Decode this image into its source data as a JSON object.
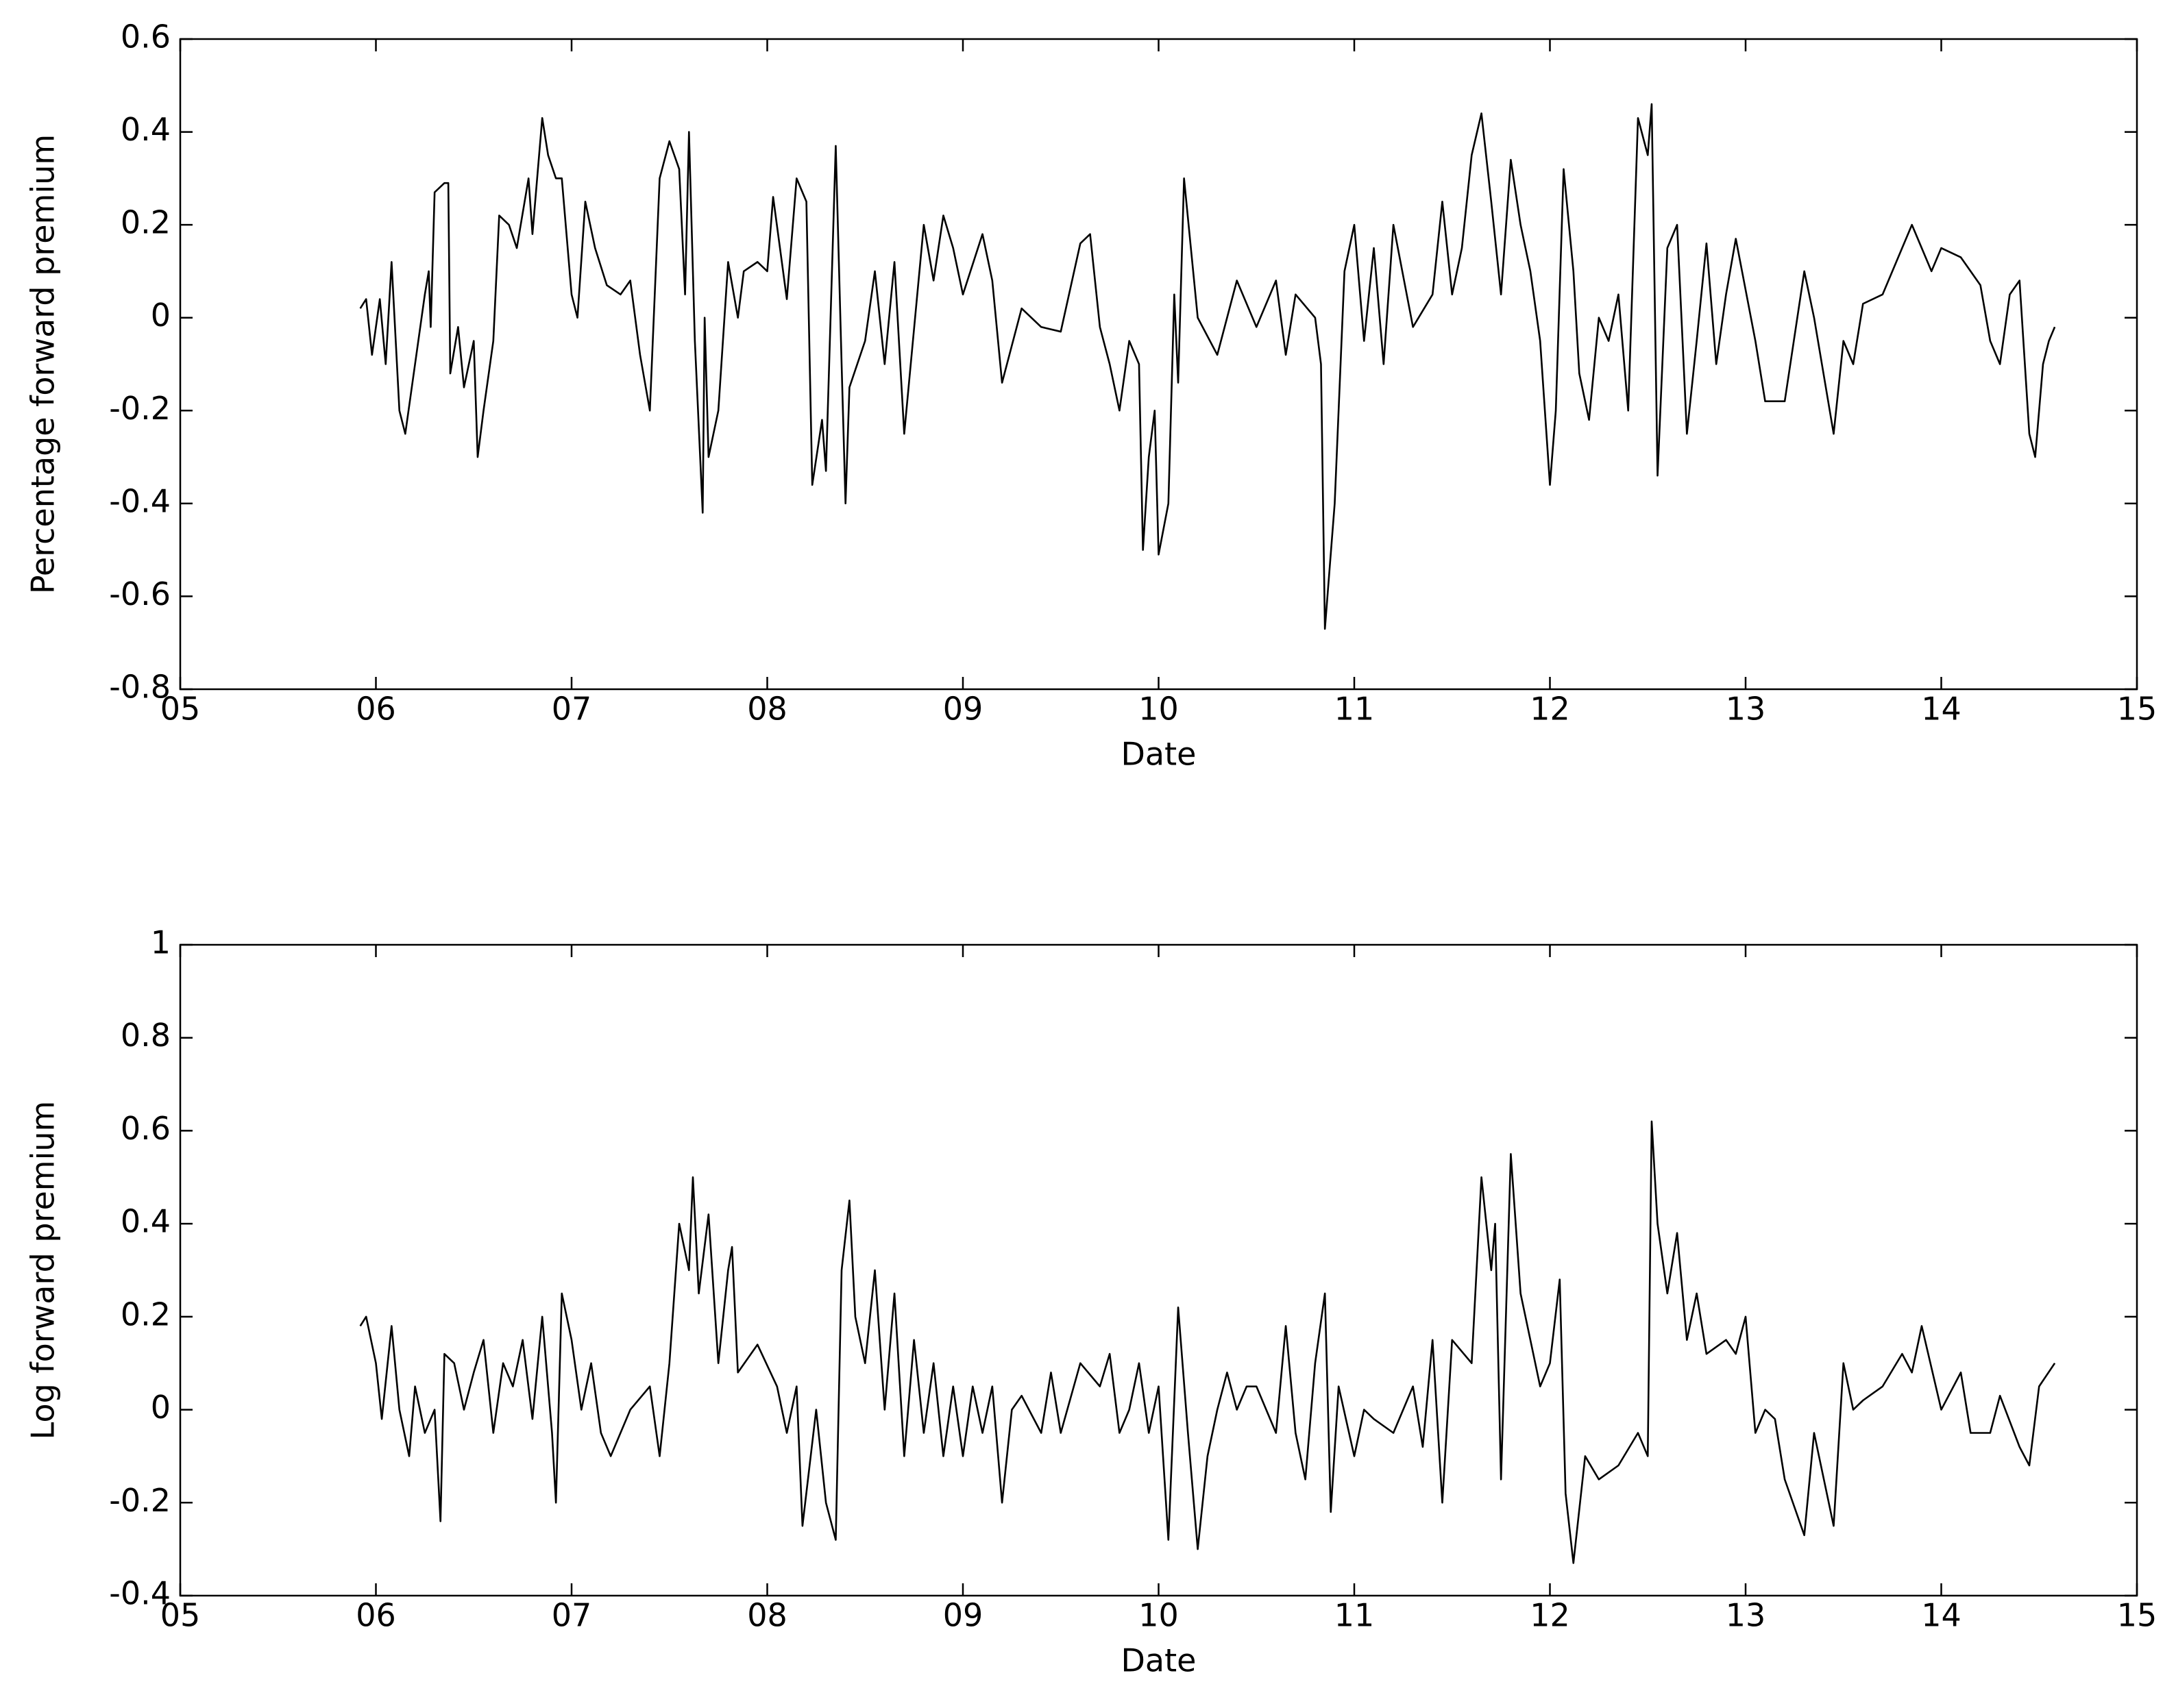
{
  "chart_data": [
    {
      "type": "line",
      "xlabel": "Date",
      "ylabel": "Percentage forward premium",
      "color": "#000000",
      "xlim": [
        5,
        15
      ],
      "ylim": [
        -0.8,
        0.6
      ],
      "xticks": [
        {
          "value": 5,
          "label": "05"
        },
        {
          "value": 6,
          "label": "06"
        },
        {
          "value": 7,
          "label": "07"
        },
        {
          "value": 8,
          "label": "08"
        },
        {
          "value": 9,
          "label": "09"
        },
        10,
        11,
        12,
        13,
        14,
        15
      ],
      "yticks": [
        -0.8,
        -0.6,
        -0.4,
        -0.2,
        0,
        0.2,
        0.4,
        0.6
      ],
      "x": [
        5.92,
        5.95,
        5.98,
        6.02,
        6.05,
        6.08,
        6.12,
        6.15,
        6.2,
        6.25,
        6.27,
        6.28,
        6.3,
        6.35,
        6.37,
        6.38,
        6.42,
        6.45,
        6.5,
        6.52,
        6.55,
        6.6,
        6.63,
        6.68,
        6.72,
        6.78,
        6.8,
        6.85,
        6.88,
        6.92,
        6.95,
        7.0,
        7.03,
        7.07,
        7.12,
        7.18,
        7.25,
        7.3,
        7.35,
        7.4,
        7.45,
        7.5,
        7.55,
        7.58,
        7.6,
        7.63,
        7.67,
        7.68,
        7.7,
        7.75,
        7.8,
        7.85,
        7.88,
        7.95,
        8.0,
        8.03,
        8.1,
        8.15,
        8.2,
        8.23,
        8.28,
        8.3,
        8.35,
        8.38,
        8.4,
        8.42,
        8.5,
        8.55,
        8.6,
        8.65,
        8.7,
        8.8,
        8.85,
        8.9,
        8.95,
        9.0,
        9.1,
        9.15,
        9.2,
        9.3,
        9.4,
        9.5,
        9.6,
        9.65,
        9.7,
        9.75,
        9.8,
        9.85,
        9.9,
        9.92,
        9.95,
        9.98,
        10.0,
        10.05,
        10.08,
        10.1,
        10.13,
        10.2,
        10.3,
        10.4,
        10.5,
        10.6,
        10.65,
        10.7,
        10.8,
        10.83,
        10.85,
        10.9,
        10.95,
        11.0,
        11.05,
        11.1,
        11.15,
        11.2,
        11.3,
        11.4,
        11.45,
        11.5,
        11.55,
        11.6,
        11.65,
        11.7,
        11.75,
        11.8,
        11.85,
        11.9,
        11.95,
        12.0,
        12.03,
        12.07,
        12.12,
        12.15,
        12.2,
        12.25,
        12.3,
        12.35,
        12.4,
        12.45,
        12.5,
        12.52,
        12.55,
        12.6,
        12.65,
        12.7,
        12.75,
        12.8,
        12.85,
        12.9,
        12.95,
        13.05,
        13.1,
        13.2,
        13.3,
        13.35,
        13.45,
        13.5,
        13.55,
        13.6,
        13.7,
        13.8,
        13.85,
        13.95,
        14.0,
        14.1,
        14.2,
        14.25,
        14.3,
        14.35,
        14.4,
        14.45,
        14.48,
        14.52,
        14.55,
        14.58
      ],
      "values": [
        0.02,
        0.04,
        -0.08,
        0.04,
        -0.1,
        0.12,
        -0.2,
        -0.25,
        -0.1,
        0.05,
        0.1,
        -0.02,
        0.27,
        0.29,
        0.29,
        -0.12,
        -0.02,
        -0.15,
        -0.05,
        -0.3,
        -0.2,
        -0.05,
        0.22,
        0.2,
        0.15,
        0.3,
        0.18,
        0.43,
        0.35,
        0.3,
        0.3,
        0.05,
        0.0,
        0.25,
        0.15,
        0.07,
        0.05,
        0.08,
        -0.08,
        -0.2,
        0.3,
        0.38,
        0.32,
        0.05,
        0.4,
        -0.05,
        -0.42,
        0.0,
        -0.3,
        -0.2,
        0.12,
        0.0,
        0.1,
        0.12,
        0.1,
        0.26,
        0.04,
        0.3,
        0.25,
        -0.36,
        -0.22,
        -0.33,
        0.37,
        -0.1,
        -0.4,
        -0.15,
        -0.05,
        0.1,
        -0.1,
        0.12,
        -0.25,
        0.2,
        0.08,
        0.22,
        0.15,
        0.05,
        0.18,
        0.08,
        -0.14,
        0.02,
        -0.02,
        -0.03,
        0.16,
        0.18,
        -0.02,
        -0.1,
        -0.2,
        -0.05,
        -0.1,
        -0.5,
        -0.3,
        -0.2,
        -0.51,
        -0.4,
        0.05,
        -0.14,
        0.3,
        0.0,
        -0.08,
        0.08,
        -0.02,
        0.08,
        -0.08,
        0.05,
        0.0,
        -0.1,
        -0.67,
        -0.4,
        0.1,
        0.2,
        -0.05,
        0.15,
        -0.1,
        0.2,
        -0.02,
        0.05,
        0.25,
        0.05,
        0.15,
        0.35,
        0.44,
        0.25,
        0.05,
        0.34,
        0.2,
        0.1,
        -0.05,
        -0.36,
        -0.2,
        0.32,
        0.1,
        -0.12,
        -0.22,
        0.0,
        -0.05,
        0.05,
        -0.2,
        0.43,
        0.35,
        0.46,
        -0.34,
        0.15,
        0.2,
        -0.25,
        -0.05,
        0.16,
        -0.1,
        0.05,
        0.17,
        -0.05,
        -0.18,
        -0.18,
        0.1,
        0.0,
        -0.25,
        -0.05,
        -0.1,
        0.03,
        0.05,
        0.15,
        0.2,
        0.1,
        0.15,
        0.13,
        0.07,
        -0.05,
        -0.1,
        0.05,
        0.08,
        -0.25,
        -0.3,
        -0.1,
        -0.05,
        -0.02
      ]
    },
    {
      "type": "line",
      "xlabel": "Date",
      "ylabel": "Log forward premium",
      "color": "#000000",
      "xlim": [
        5,
        15
      ],
      "ylim": [
        -0.4,
        1
      ],
      "xticks": [
        {
          "value": 5,
          "label": "05"
        },
        {
          "value": 6,
          "label": "06"
        },
        {
          "value": 7,
          "label": "07"
        },
        {
          "value": 8,
          "label": "08"
        },
        {
          "value": 9,
          "label": "09"
        },
        10,
        11,
        12,
        13,
        14,
        15
      ],
      "yticks": [
        -0.4,
        -0.2,
        0,
        0.2,
        0.4,
        0.6,
        0.8,
        1
      ],
      "x": [
        5.92,
        5.95,
        6.0,
        6.03,
        6.08,
        6.12,
        6.17,
        6.2,
        6.25,
        6.3,
        6.33,
        6.35,
        6.4,
        6.45,
        6.5,
        6.55,
        6.6,
        6.65,
        6.7,
        6.75,
        6.8,
        6.85,
        6.9,
        6.92,
        6.95,
        7.0,
        7.05,
        7.1,
        7.15,
        7.2,
        7.3,
        7.4,
        7.45,
        7.5,
        7.55,
        7.6,
        7.62,
        7.65,
        7.7,
        7.75,
        7.8,
        7.82,
        7.85,
        7.95,
        8.05,
        8.1,
        8.15,
        8.18,
        8.25,
        8.3,
        8.35,
        8.38,
        8.42,
        8.45,
        8.5,
        8.55,
        8.6,
        8.65,
        8.7,
        8.75,
        8.8,
        8.85,
        8.9,
        8.95,
        9.0,
        9.05,
        9.1,
        9.15,
        9.2,
        9.25,
        9.3,
        9.4,
        9.45,
        9.5,
        9.6,
        9.7,
        9.75,
        9.8,
        9.85,
        9.9,
        9.95,
        10.0,
        10.05,
        10.1,
        10.15,
        10.2,
        10.25,
        10.3,
        10.35,
        10.4,
        10.45,
        10.5,
        10.6,
        10.65,
        10.7,
        10.75,
        10.8,
        10.85,
        10.88,
        10.92,
        11.0,
        11.05,
        11.1,
        11.2,
        11.3,
        11.35,
        11.4,
        11.45,
        11.5,
        11.6,
        11.65,
        11.7,
        11.72,
        11.75,
        11.8,
        11.85,
        11.9,
        11.95,
        12.0,
        12.05,
        12.08,
        12.12,
        12.18,
        12.25,
        12.35,
        12.45,
        12.5,
        12.52,
        12.55,
        12.6,
        12.65,
        12.7,
        12.75,
        12.8,
        12.9,
        12.95,
        13.0,
        13.05,
        13.1,
        13.15,
        13.2,
        13.3,
        13.35,
        13.45,
        13.5,
        13.55,
        13.6,
        13.7,
        13.8,
        13.85,
        13.9,
        14.0,
        14.1,
        14.15,
        14.25,
        14.3,
        14.4,
        14.45,
        14.5,
        14.58
      ],
      "values": [
        0.18,
        0.2,
        0.1,
        -0.02,
        0.18,
        0.0,
        -0.1,
        0.05,
        -0.05,
        0.0,
        -0.24,
        0.12,
        0.1,
        0.0,
        0.08,
        0.15,
        -0.05,
        0.1,
        0.05,
        0.15,
        -0.02,
        0.2,
        -0.05,
        -0.2,
        0.25,
        0.15,
        0.0,
        0.1,
        -0.05,
        -0.1,
        0.0,
        0.05,
        -0.1,
        0.1,
        0.4,
        0.3,
        0.5,
        0.25,
        0.42,
        0.1,
        0.3,
        0.35,
        0.08,
        0.14,
        0.05,
        -0.05,
        0.05,
        -0.25,
        0.0,
        -0.2,
        -0.28,
        0.3,
        0.45,
        0.2,
        0.1,
        0.3,
        0.0,
        0.25,
        -0.1,
        0.15,
        -0.05,
        0.1,
        -0.1,
        0.05,
        -0.1,
        0.05,
        -0.05,
        0.05,
        -0.2,
        0.0,
        0.03,
        -0.05,
        0.08,
        -0.05,
        0.1,
        0.05,
        0.12,
        -0.05,
        0.0,
        0.1,
        -0.05,
        0.05,
        -0.28,
        0.22,
        -0.05,
        -0.3,
        -0.1,
        0.0,
        0.08,
        0.0,
        0.05,
        0.05,
        -0.05,
        0.18,
        -0.05,
        -0.15,
        0.1,
        0.25,
        -0.22,
        0.05,
        -0.1,
        0.0,
        -0.02,
        -0.05,
        0.05,
        -0.08,
        0.15,
        -0.2,
        0.15,
        0.1,
        0.5,
        0.3,
        0.4,
        -0.15,
        0.55,
        0.25,
        0.15,
        0.05,
        0.1,
        0.28,
        -0.18,
        -0.33,
        -0.1,
        -0.15,
        -0.12,
        -0.05,
        -0.1,
        0.62,
        0.4,
        0.25,
        0.38,
        0.15,
        0.25,
        0.12,
        0.15,
        0.12,
        0.2,
        -0.05,
        0.0,
        -0.02,
        -0.15,
        -0.27,
        -0.05,
        -0.25,
        0.1,
        0.0,
        0.02,
        0.05,
        0.12,
        0.08,
        0.18,
        0.0,
        0.08,
        -0.05,
        -0.05,
        0.03,
        -0.08,
        -0.12,
        0.05,
        0.1
      ]
    }
  ]
}
